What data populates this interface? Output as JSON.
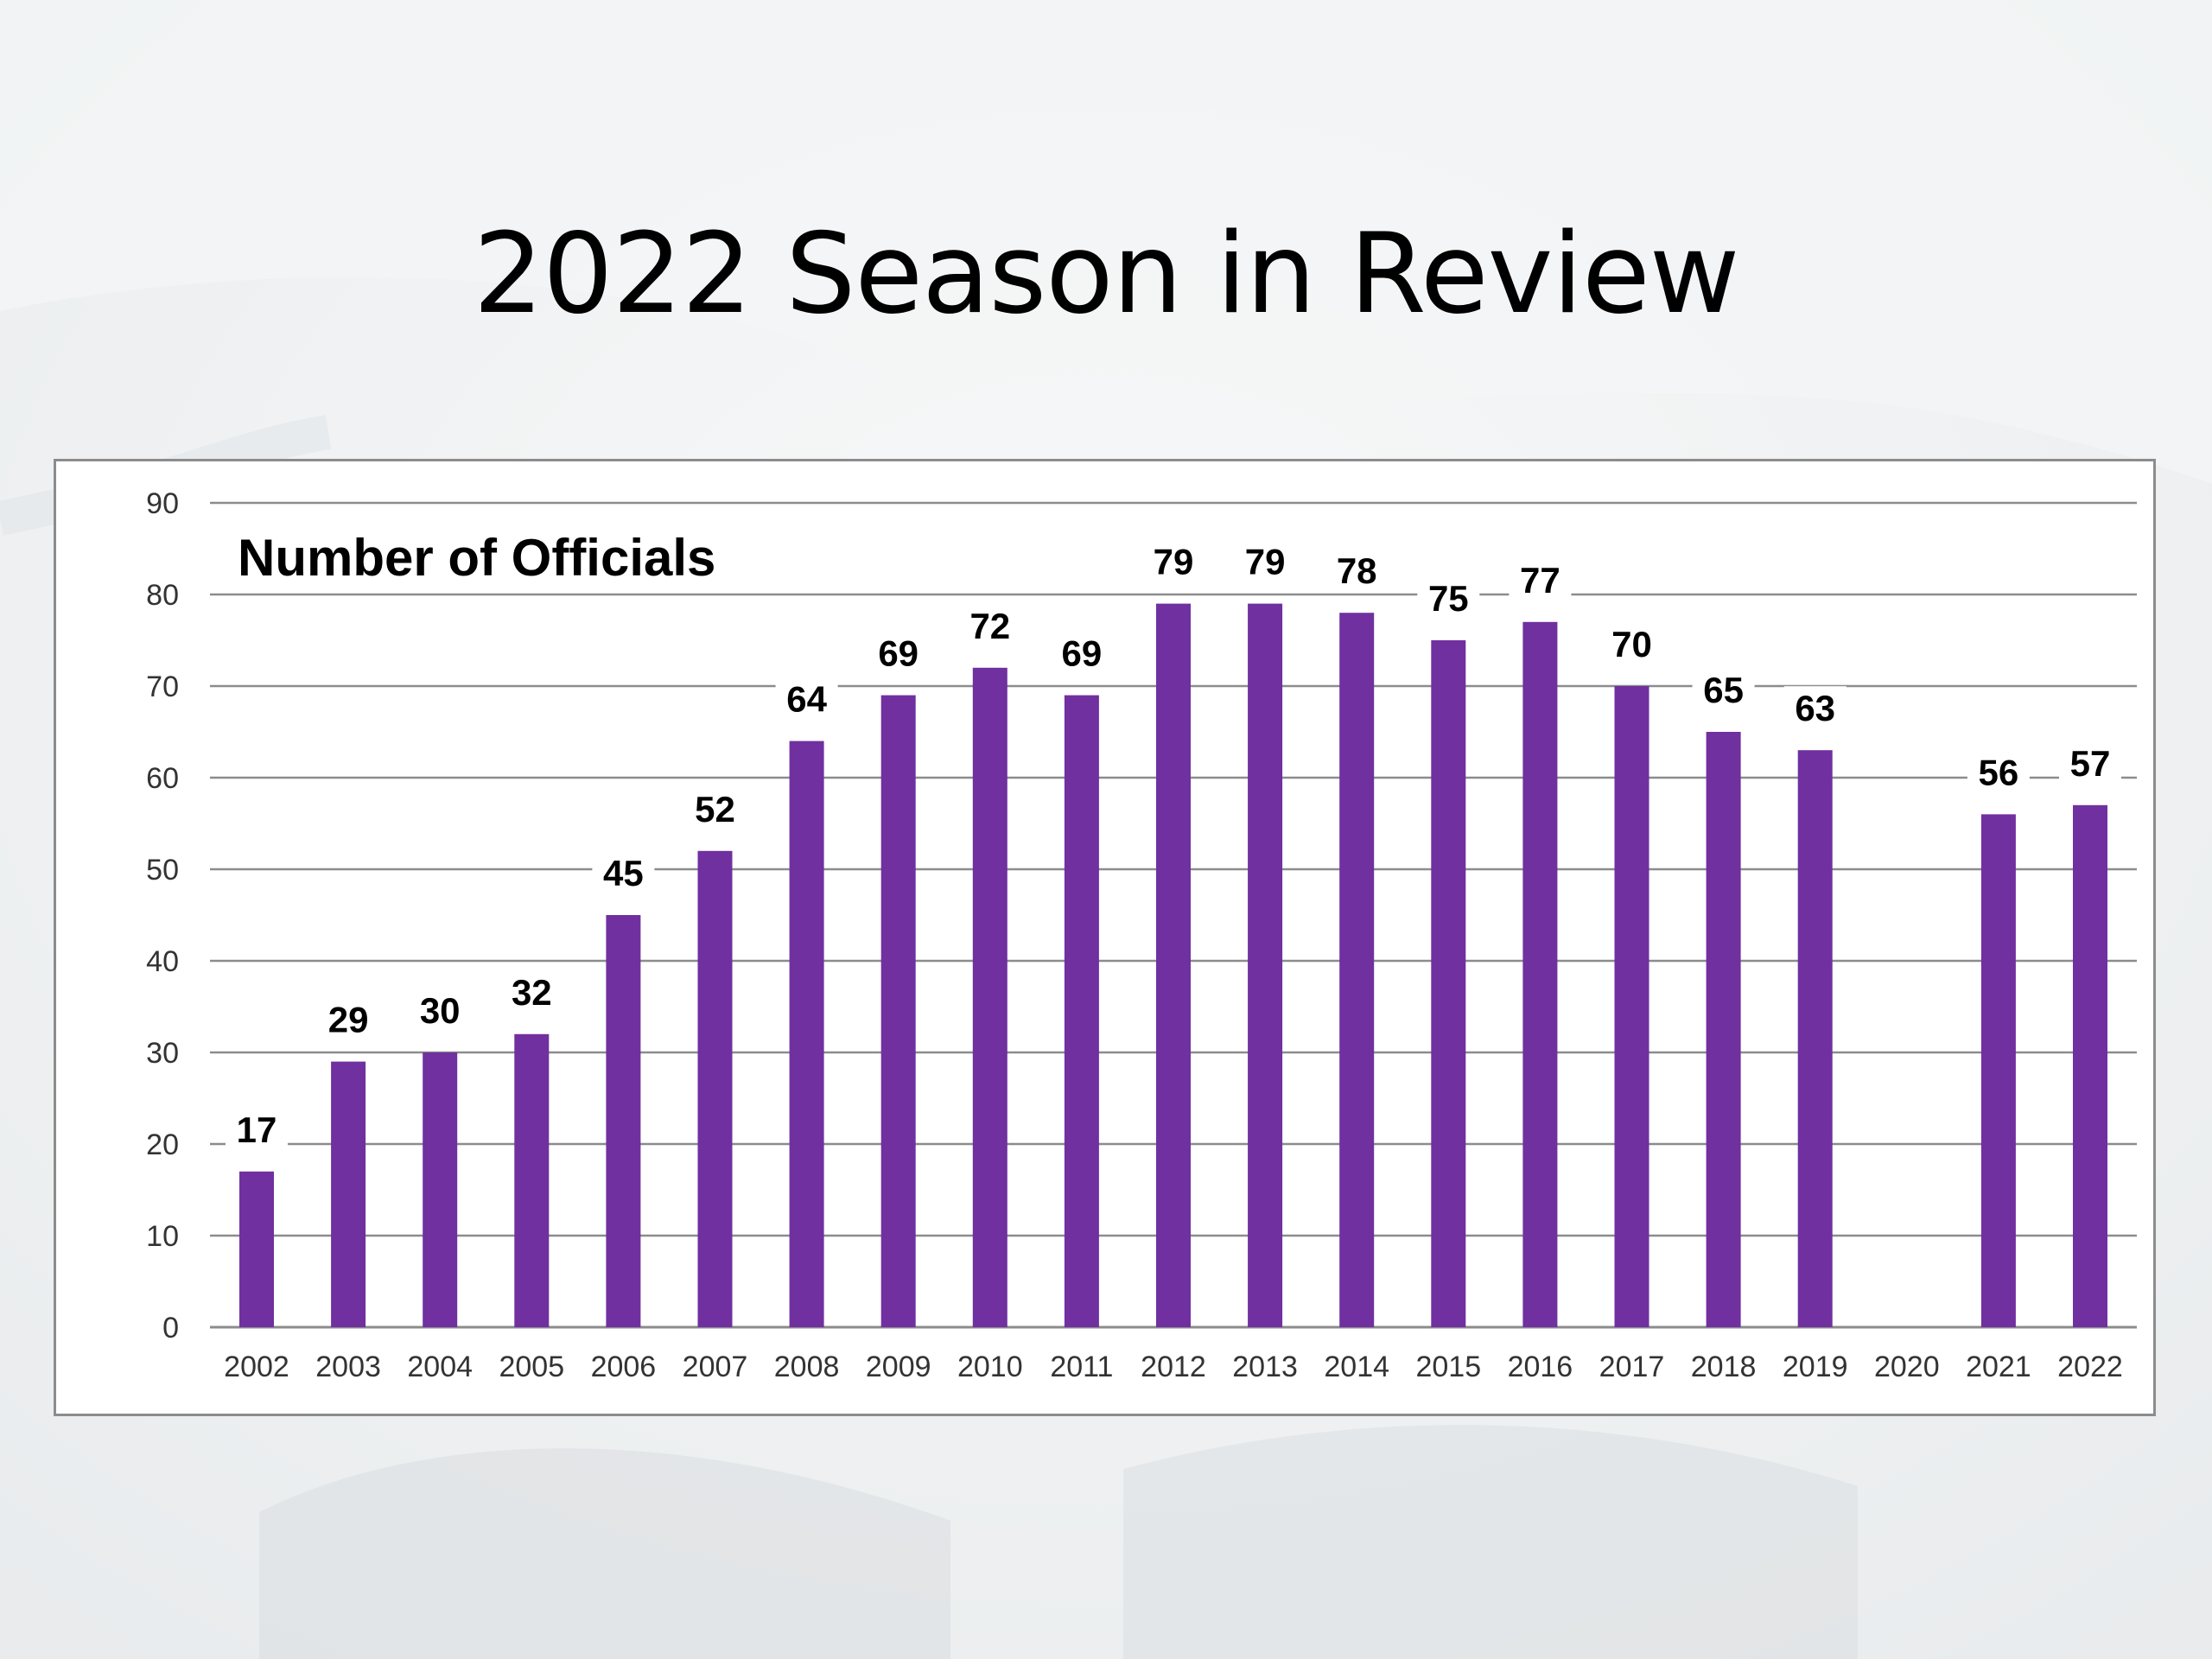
{
  "slide": {
    "title": "2022 Season in Review"
  },
  "colors": {
    "bar": "#7030a0",
    "grid": "#8c8c8c",
    "text": "#000000",
    "frame": "#8c8c8c"
  },
  "chart_data": {
    "type": "bar",
    "title": "Number of Officials",
    "xlabel": "",
    "ylabel": "",
    "ylim": [
      0,
      90
    ],
    "yticks": [
      0,
      10,
      20,
      30,
      40,
      50,
      60,
      70,
      80,
      90
    ],
    "grid": true,
    "categories": [
      "2002",
      "2003",
      "2004",
      "2005",
      "2006",
      "2007",
      "2008",
      "2009",
      "2010",
      "2011",
      "2012",
      "2013",
      "2014",
      "2015",
      "2016",
      "2017",
      "2018",
      "2019",
      "2020",
      "2021",
      "2022"
    ],
    "values": [
      17,
      29,
      30,
      32,
      45,
      52,
      64,
      69,
      72,
      69,
      79,
      79,
      78,
      75,
      77,
      70,
      65,
      63,
      null,
      56,
      57
    ]
  }
}
